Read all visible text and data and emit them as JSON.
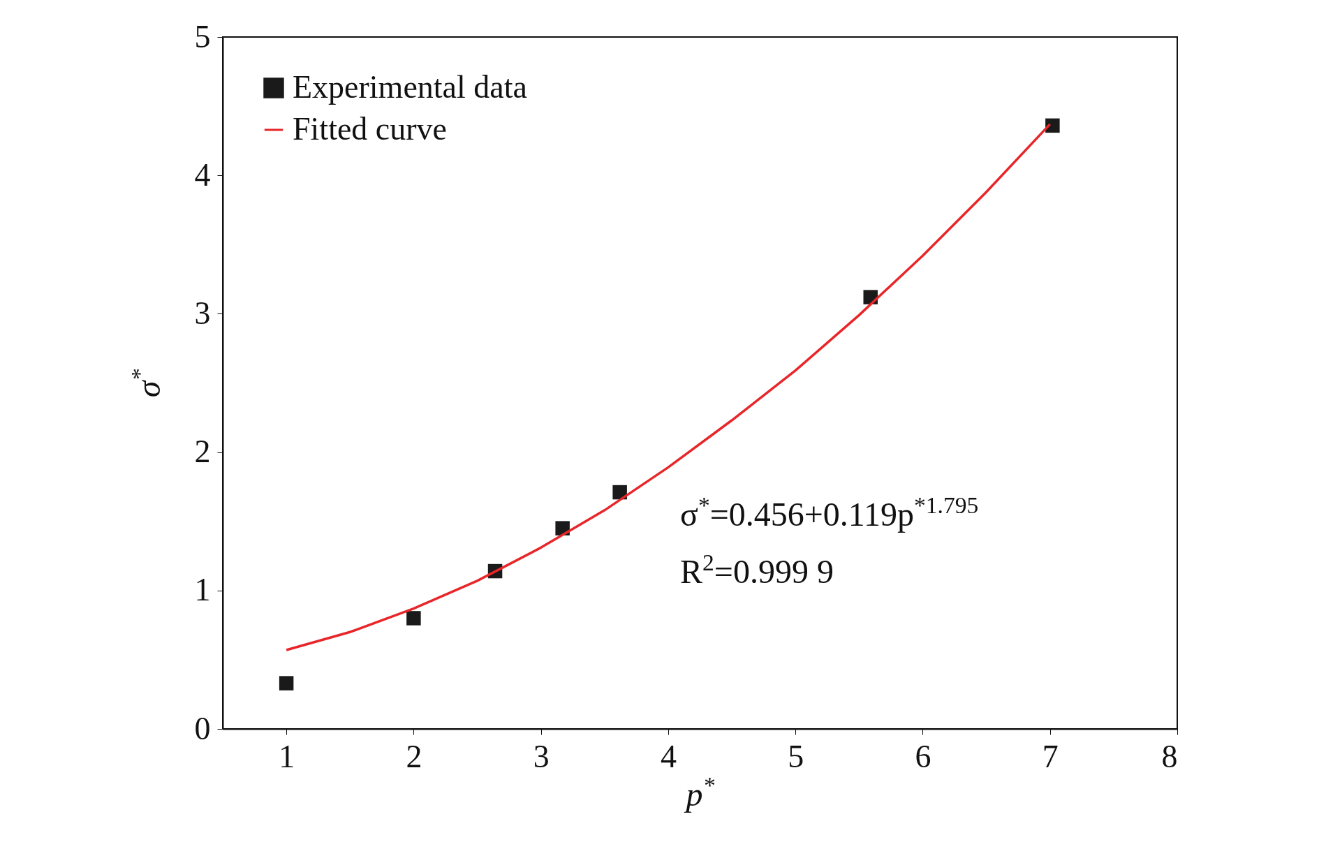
{
  "chart_data": {
    "type": "scatter",
    "xlabel": "p$^{*}$",
    "ylabel": "σ$^{*}$",
    "xlim": [
      0.5,
      8
    ],
    "ylim": [
      0,
      5
    ],
    "xticks": [
      1,
      2,
      3,
      4,
      5,
      6,
      7,
      8
    ],
    "yticks": [
      0,
      1,
      2,
      3,
      4,
      5
    ],
    "grid": false,
    "legend": "top left",
    "series": [
      {
        "name": "Experimental data",
        "marker": "square",
        "color": "#1a1a1a",
        "x": [
          1.0,
          2.0,
          2.64,
          3.17,
          3.62,
          5.59,
          7.02
        ],
        "values": [
          0.33,
          0.8,
          1.14,
          1.45,
          1.71,
          3.12,
          4.36
        ]
      },
      {
        "name": "Fitted curve",
        "type": "line",
        "line_style": "solid",
        "color": "#e8262a",
        "x": [
          1,
          1.5,
          2,
          2.5,
          3,
          3.5,
          4,
          4.5,
          5,
          5.5,
          6,
          6.5,
          7
        ],
        "values": [
          0.57,
          0.7,
          0.87,
          1.07,
          1.31,
          1.58,
          1.89,
          2.23,
          2.59,
          2.99,
          3.42,
          3.88,
          4.37
        ]
      }
    ],
    "annotations": [
      "σ$^{*}$=0.456+0.119p$^{*1.795}$",
      "R$^{2}$=0.999 9"
    ]
  }
}
